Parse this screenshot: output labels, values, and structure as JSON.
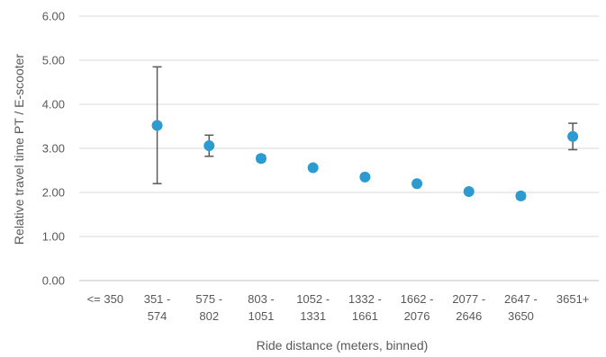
{
  "chart_data": {
    "type": "scatter",
    "title": "",
    "xlabel": "Ride distance (meters, binned)",
    "ylabel": "Relative travel time PT / E-scooter",
    "ylim": [
      0,
      6
    ],
    "ytick_step": 1,
    "yticks": [
      "0.00",
      "1.00",
      "2.00",
      "3.00",
      "4.00",
      "5.00",
      "6.00"
    ],
    "grid": true,
    "legend": "none",
    "categories": [
      [
        "<= 350"
      ],
      [
        "351 -",
        "574"
      ],
      [
        "575 -",
        "802"
      ],
      [
        "803 -",
        "1051"
      ],
      [
        "1052 -",
        "1331"
      ],
      [
        "1332 -",
        "1661"
      ],
      [
        "1662 -",
        "2076"
      ],
      [
        "2077 -",
        "2646"
      ],
      [
        "2647 -",
        "3650"
      ],
      [
        "3651+"
      ]
    ],
    "series": [
      {
        "values": [
          null,
          3.52,
          3.06,
          2.77,
          2.56,
          2.35,
          2.2,
          2.02,
          1.92,
          3.27
        ],
        "error_low": [
          null,
          2.2,
          2.82,
          2.7,
          2.53,
          2.32,
          2.17,
          1.99,
          1.85,
          2.97
        ],
        "error_high": [
          null,
          4.85,
          3.3,
          2.84,
          2.59,
          2.38,
          2.23,
          2.05,
          1.99,
          3.57
        ],
        "color": "#2e9bd0"
      }
    ],
    "colors": {
      "grid": "#d9d9d9",
      "axis": "#bfbfbf",
      "errorbar": "#595959",
      "text": "#595959"
    }
  }
}
